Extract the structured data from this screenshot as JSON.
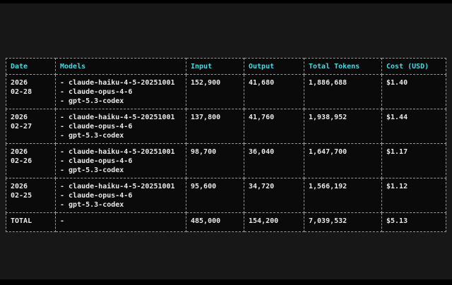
{
  "colors": {
    "header_text": "#49d7e4",
    "cost_text": "#35d435",
    "total_text": "#dede52",
    "body_text": "#e8e8e8",
    "border": "#9a9a9a",
    "table_bg": "#0a0a0a",
    "screen_bg": "#171717"
  },
  "table": {
    "columns": [
      {
        "label": "Date"
      },
      {
        "label": "Models"
      },
      {
        "label": "Input"
      },
      {
        "label": "Output"
      },
      {
        "label": "Total Tokens"
      },
      {
        "label": "Cost (USD)"
      }
    ],
    "rows": [
      {
        "date": "2026\n02-28",
        "models": [
          "claude-haiku-4-5-20251001",
          "claude-opus-4-6",
          "gpt-5.3-codex"
        ],
        "input": "152,900",
        "output": "41,680",
        "total_tokens": "1,886,688",
        "cost": "$1.40"
      },
      {
        "date": "2026\n02-27",
        "models": [
          "claude-haiku-4-5-20251001",
          "claude-opus-4-6",
          "gpt-5.3-codex"
        ],
        "input": "137,800",
        "output": "41,760",
        "total_tokens": "1,938,952",
        "cost": "$1.44"
      },
      {
        "date": "2026\n02-26",
        "models": [
          "claude-haiku-4-5-20251001",
          "claude-opus-4-6",
          "gpt-5.3-codex"
        ],
        "input": "98,700",
        "output": "36,040",
        "total_tokens": "1,647,700",
        "cost": "$1.17"
      },
      {
        "date": "2026\n02-25",
        "models": [
          "claude-haiku-4-5-20251001",
          "claude-opus-4-6",
          "gpt-5.3-codex"
        ],
        "input": "95,600",
        "output": "34,720",
        "total_tokens": "1,566,192",
        "cost": "$1.12"
      }
    ],
    "total_row": {
      "label": "TOTAL",
      "models": "-",
      "input": "485,000",
      "output": "154,200",
      "total_tokens": "7,039,532",
      "cost": "$5.13"
    }
  }
}
